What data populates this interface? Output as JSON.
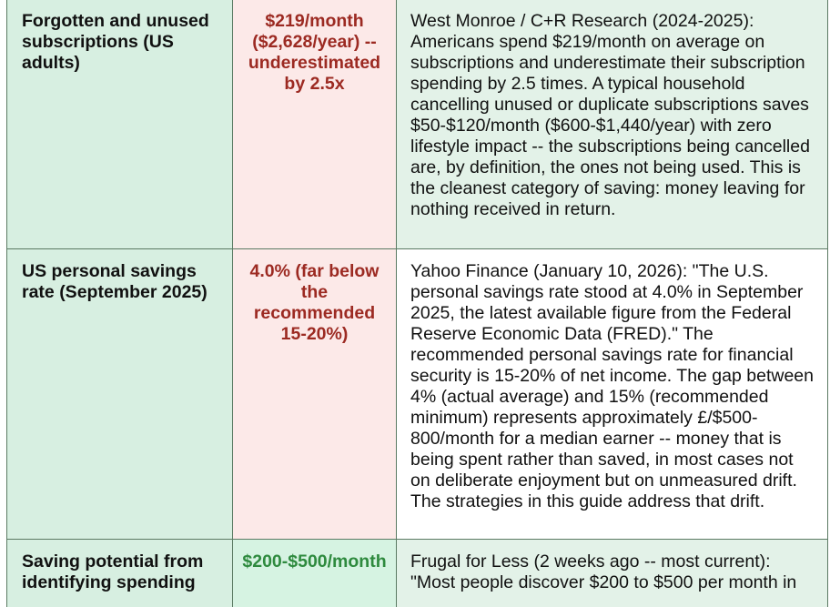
{
  "rows": [
    {
      "metric": "Forgotten and unused subscriptions (US adults)",
      "value": "$219/month ($2,628/year) -- underestimated by 2.5x",
      "source": "West Monroe / C+R Research (2024-2025): Americans spend $219/month on average on subscriptions and underestimate their subscription spending by 2.5 times. A typical household cancelling unused or duplicate subscriptions saves $50-$120/month ($600-$1,440/year) with zero lifestyle impact -- the subscriptions being cancelled are, by definition, the ones not being used. This is the cleanest category of saving: money leaving for nothing received in return."
    },
    {
      "metric": "US personal savings rate (September 2025)",
      "value": "4.0% (far below the recommended 15-20%)",
      "source": "Yahoo Finance (January 10, 2026): \"The U.S. personal savings rate stood at 4.0% in September 2025, the latest available figure from the Federal Reserve Economic Data (FRED).\" The recommended personal savings rate for financial security is 15-20% of net income. The gap between 4% (actual average) and 15% (recommended minimum) represents approximately £/$500-800/month for a median earner -- money that is being spent rather than saved, in most cases not on deliberate enjoyment but on unmeasured drift. The strategies in this guide address that drift."
    },
    {
      "metric": "Saving potential from identifying spending",
      "value": "$200-$500/month",
      "source": "Frugal for Less (2 weeks ago -- most current): \"Most people discover $200 to $500 per month in"
    }
  ],
  "colors": {
    "metric_bg": "#d7efe1",
    "negative_value_bg": "#fce9e8",
    "negative_value_text": "#9c2a22",
    "positive_value_bg": "#d6f3e2",
    "positive_value_text": "#2e8a3e",
    "border": "#5b7a63"
  }
}
